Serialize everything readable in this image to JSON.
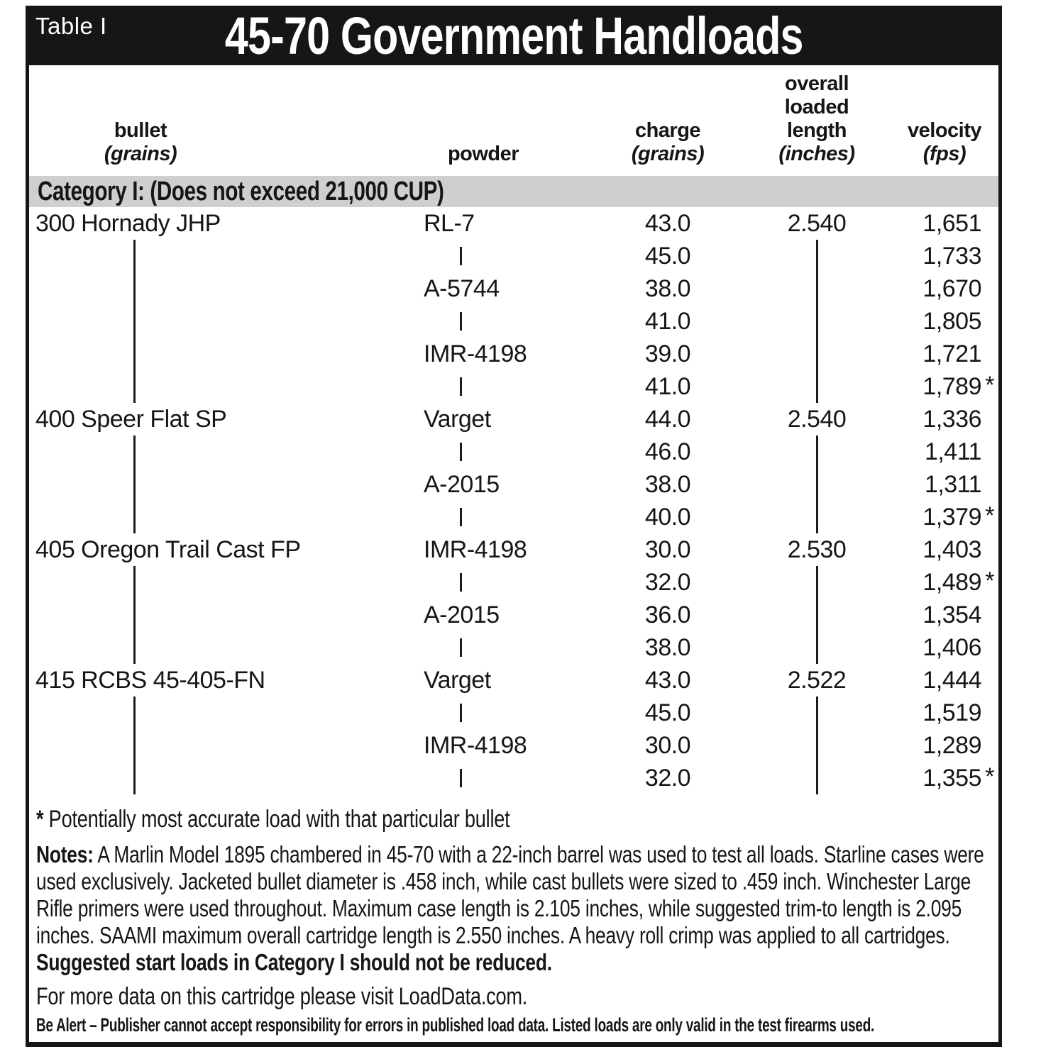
{
  "table": {
    "tag": "Table I",
    "title": "45-70 Government Handloads",
    "columns": [
      {
        "label": "bullet",
        "unit": "(grains)"
      },
      {
        "label": "powder"
      },
      {
        "label": "charge",
        "unit": "(grains)"
      },
      {
        "lines": [
          "overall",
          "loaded",
          "length"
        ],
        "unit": "(inches)"
      },
      {
        "label": "velocity",
        "unit": "(fps)"
      }
    ],
    "category": "Category I: (Does not exceed 21,000 CUP)",
    "rows": [
      {
        "bullet": "300 Hornady JHP",
        "powder": "RL-7",
        "charge": "43.0",
        "oal": "2.540",
        "velocity": "1,651"
      },
      {
        "bullet": "|",
        "powder": "|",
        "charge": "45.0",
        "oal": "|",
        "velocity": "1,733"
      },
      {
        "bullet": "|",
        "powder": "A-5744",
        "charge": "38.0",
        "oal": "|",
        "velocity": "1,670"
      },
      {
        "bullet": "|",
        "powder": "|",
        "charge": "41.0",
        "oal": "|",
        "velocity": "1,805"
      },
      {
        "bullet": "|",
        "powder": "IMR-4198",
        "charge": "39.0",
        "oal": "|",
        "velocity": "1,721"
      },
      {
        "bullet": "|",
        "powder": "|",
        "charge": "41.0",
        "oal": "|",
        "velocity": "1,789*"
      },
      {
        "bullet": "400 Speer Flat SP",
        "powder": "Varget",
        "charge": "44.0",
        "oal": "2.540",
        "velocity": "1,336"
      },
      {
        "bullet": "|",
        "powder": "|",
        "charge": "46.0",
        "oal": "|",
        "velocity": "1,411"
      },
      {
        "bullet": "|",
        "powder": "A-2015",
        "charge": "38.0",
        "oal": "|",
        "velocity": "1,311"
      },
      {
        "bullet": "|",
        "powder": "|",
        "charge": "40.0",
        "oal": "|",
        "velocity": "1,379*"
      },
      {
        "bullet": "405 Oregon Trail Cast FP",
        "powder": "IMR-4198",
        "charge": "30.0",
        "oal": "2.530",
        "velocity": "1,403"
      },
      {
        "bullet": "|",
        "powder": "|",
        "charge": "32.0",
        "oal": "|",
        "velocity": "1,489*"
      },
      {
        "bullet": "|",
        "powder": "A-2015",
        "charge": "36.0",
        "oal": "|",
        "velocity": "1,354"
      },
      {
        "bullet": "|",
        "powder": "|",
        "charge": "38.0",
        "oal": "|",
        "velocity": "1,406"
      },
      {
        "bullet": "415 RCBS 45-405-FN",
        "powder": "Varget",
        "charge": "43.0",
        "oal": "2.522",
        "velocity": "1,444"
      },
      {
        "bullet": "|",
        "powder": "|",
        "charge": "45.0",
        "oal": "|",
        "velocity": "1,519"
      },
      {
        "bullet": "|",
        "powder": "IMR-4198",
        "charge": "30.0",
        "oal": "|",
        "velocity": "1,289"
      },
      {
        "bullet": "|",
        "powder": "|",
        "charge": "32.0",
        "oal": "|",
        "velocity": "1,355*"
      }
    ]
  },
  "footnote": {
    "marker": "*",
    "text": "Potentially most accurate load with that particular bullet"
  },
  "notes": {
    "label": "Notes:",
    "body": " A Marlin Model 1895 chambered in 45-70 with a 22-inch barrel was used to test all loads. Starline cases were used exclusively. Jacketed bullet diameter is .458 inch, while cast bullets were sized to .459 inch. Winchester Large Rifle primers were used throughout. Maximum case length is 2.105 inches, while suggested trim-to length is 2.095 inches. SAAMI maximum overall cartridge length is 2.550 inches. A heavy roll crimp was applied to all cartridges. ",
    "bold_tail": "Suggested start loads in Category I should not be reduced."
  },
  "more_data": "For more data on this cartridge please visit LoadData.com.",
  "disclaimer": "Be Alert – Publisher cannot accept responsibility for errors in published load data. Listed loads are only valid in the test firearms used.",
  "colors": {
    "ink": "#161616",
    "category_bar": "#cfcfcf",
    "title_bar": "#161616"
  }
}
